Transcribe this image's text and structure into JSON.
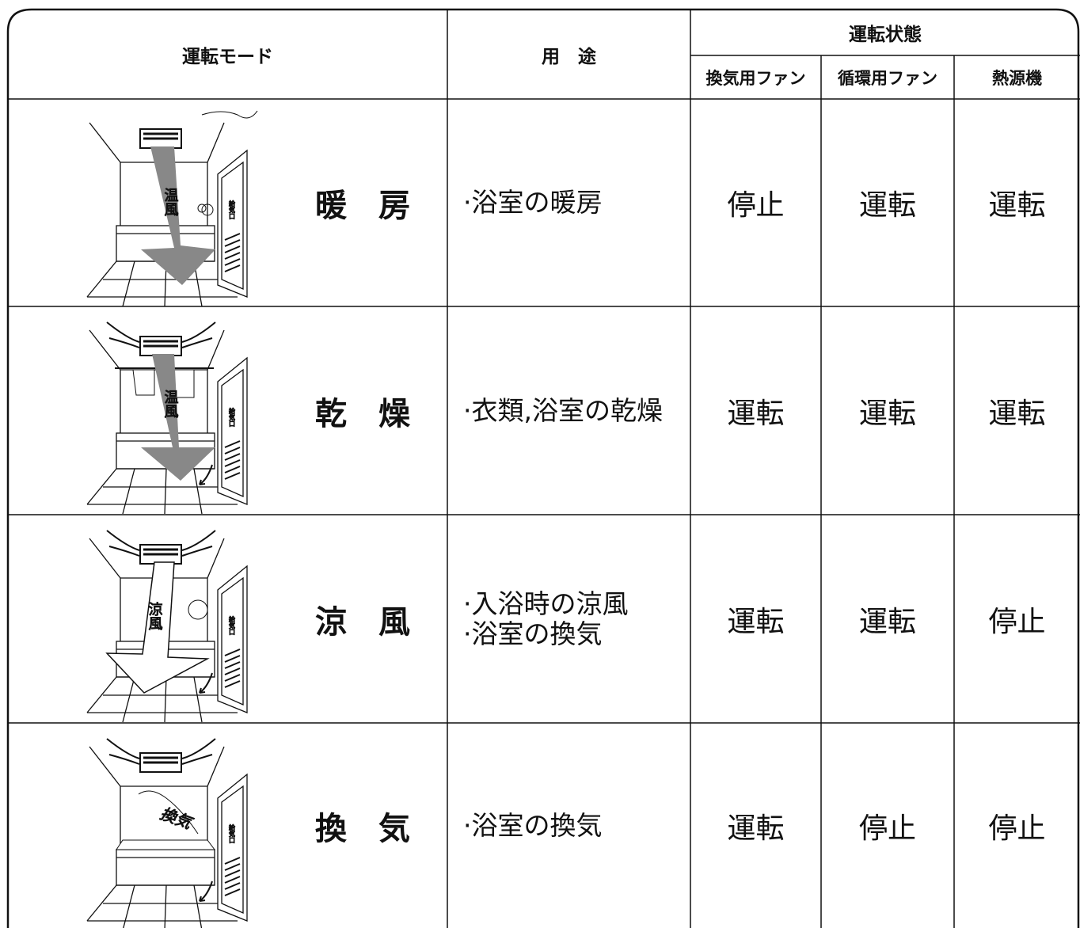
{
  "header": {
    "mode": "運転モード",
    "use": "用　途",
    "state": "運転状態",
    "state_columns": [
      "換気用ファン",
      "循環用ファン",
      "熱源機"
    ]
  },
  "rows": [
    {
      "mode": "暖　房",
      "uses": [
        "·浴室の暖房"
      ],
      "states": [
        "停止",
        "運転",
        "運転"
      ],
      "art_labels": [
        "温風",
        "給気口"
      ]
    },
    {
      "mode": "乾　燥",
      "uses": [
        "·衣類,浴室の乾燥"
      ],
      "states": [
        "運転",
        "運転",
        "運転"
      ],
      "art_labels": [
        "温風",
        "給気口"
      ]
    },
    {
      "mode": "涼　風",
      "uses": [
        "·入浴時の涼風",
        "·浴室の換気"
      ],
      "states": [
        "運転",
        "運転",
        "停止"
      ],
      "art_labels": [
        "涼風",
        "給気口"
      ]
    },
    {
      "mode": "換　気",
      "uses": [
        "·浴室の換気"
      ],
      "states": [
        "運転",
        "停止",
        "停止"
      ],
      "art_labels": [
        "換気",
        "給気口"
      ]
    }
  ]
}
